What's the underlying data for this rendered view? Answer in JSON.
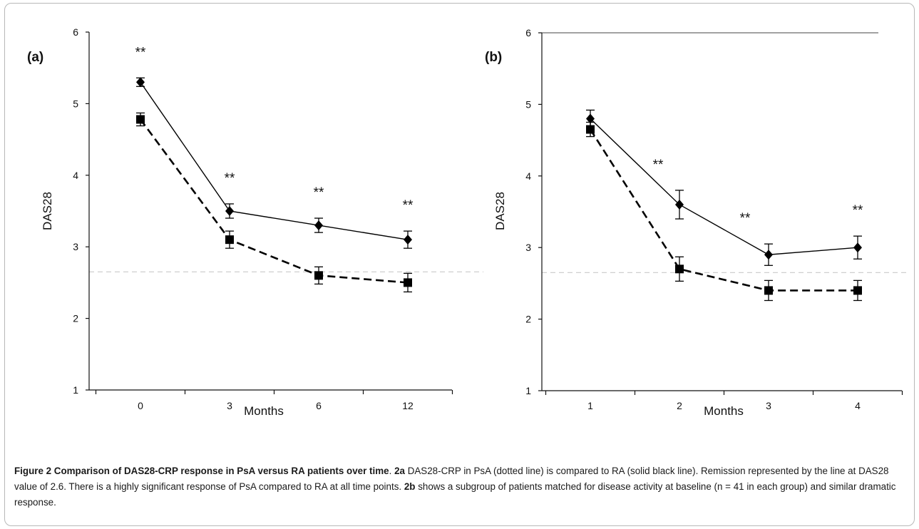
{
  "chart_data": [
    {
      "type": "line",
      "panel_label": "(a)",
      "xlabel": "Months",
      "ylabel": "DAS28",
      "categories": [
        "0",
        "3",
        "6",
        "12"
      ],
      "ylim": [
        1,
        6
      ],
      "yticks": [
        "1",
        "2",
        "3",
        "4",
        "5",
        "6"
      ],
      "grid": false,
      "remission_line": 2.65,
      "series": [
        {
          "style": "solid",
          "marker": "diamond",
          "values": [
            5.3,
            3.5,
            3.3,
            3.1
          ],
          "errors": [
            0.06,
            0.1,
            0.1,
            0.12
          ]
        },
        {
          "style": "dashed",
          "marker": "square",
          "values": [
            4.78,
            3.1,
            2.6,
            2.5
          ],
          "errors": [
            0.09,
            0.12,
            0.12,
            0.13
          ]
        }
      ],
      "annotations": [
        "**",
        "**",
        "**",
        "**"
      ]
    },
    {
      "type": "line",
      "panel_label": "(b)",
      "xlabel": "Months",
      "ylabel": "DAS28",
      "categories": [
        "1",
        "2",
        "3",
        "4"
      ],
      "ylim": [
        1,
        6
      ],
      "yticks": [
        "1",
        "2",
        "3",
        "4",
        "5",
        "6"
      ],
      "grid": false,
      "remission_line": 2.65,
      "series": [
        {
          "style": "solid",
          "marker": "diamond",
          "values": [
            4.8,
            3.6,
            2.9,
            3.0
          ],
          "errors": [
            0.12,
            0.2,
            0.15,
            0.16
          ]
        },
        {
          "style": "dashed",
          "marker": "square",
          "values": [
            4.65,
            2.7,
            2.4,
            2.4
          ],
          "errors": [
            0.1,
            0.17,
            0.14,
            0.14
          ]
        }
      ],
      "annotations": [
        "",
        "**",
        "**",
        "**"
      ]
    }
  ],
  "caption": {
    "title": "Figure 2 Comparison of DAS28-CRP response in PsA versus RA patients over time",
    "period": ". ",
    "ref_a": "2a",
    "text_a": " DAS28-CRP in PsA (dotted line) is compared to RA (solid black line). Remission represented by the line at DAS28 value of 2.6. There is a highly significant response of PsA compared to RA at all time points. ",
    "ref_b": "2b",
    "text_b": " shows a subgroup of patients matched for disease activity at baseline (n = 41 in each group) and similar dramatic response."
  }
}
